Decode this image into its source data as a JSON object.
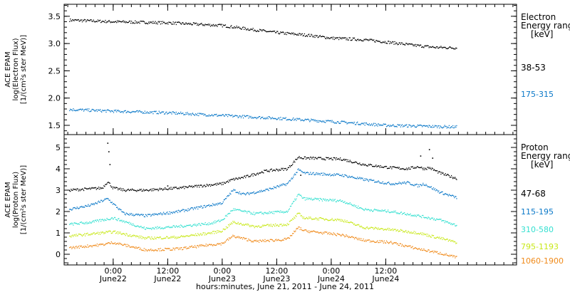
{
  "x_axis_title": "hours:minutes, June 21, 2011 - June 24, 2011",
  "chart_data": [
    {
      "id": "electron",
      "type": "scatter",
      "ylabel_lines": [
        "ACE EPAM",
        "log(Electron Flux)",
        "[1/(cm²s ster MeV)]"
      ],
      "legend_title_lines": [
        "Electron",
        "Energy range",
        "[keV]"
      ],
      "ylim": [
        1.33,
        3.72
      ],
      "yticks": [
        1.5,
        2.0,
        2.5,
        3.0,
        3.5
      ],
      "ytick_labels": [
        "1.5",
        "2.0",
        "2.5",
        "3.0",
        "3.5"
      ],
      "series": [
        {
          "name": "38-53",
          "color": "#000000",
          "x": [
            -0.4,
            0,
            0.5,
            1.0,
            1.3,
            1.5,
            1.8,
            2.0,
            2.3,
            2.5,
            2.75,
            2.95,
            3.15
          ],
          "y": [
            3.43,
            3.4,
            3.38,
            3.33,
            3.25,
            3.2,
            3.15,
            3.1,
            3.07,
            3.03,
            2.97,
            2.93,
            2.92
          ]
        },
        {
          "name": "175-315",
          "color": "#0a78c8",
          "x": [
            -0.4,
            0,
            0.5,
            1.0,
            1.5,
            2.0,
            2.5,
            3.15
          ],
          "y": [
            1.79,
            1.76,
            1.73,
            1.68,
            1.63,
            1.57,
            1.5,
            1.47
          ]
        }
      ]
    },
    {
      "id": "proton",
      "type": "scatter",
      "ylabel_lines": [
        "ACE EPAM",
        "log(Proton Flux)",
        "[1/(cm²s ster MeV)]"
      ],
      "legend_title_lines": [
        "Proton",
        "Energy range",
        "[keV]"
      ],
      "ylim": [
        -0.5,
        5.6
      ],
      "yticks": [
        0,
        1,
        2,
        3,
        4,
        5
      ],
      "ytick_labels": [
        "0",
        "1",
        "2",
        "3",
        "4",
        "5"
      ],
      "series": [
        {
          "name": "47-68",
          "color": "#000000",
          "x": [
            -0.4,
            -0.1,
            -0.05,
            0,
            0.1,
            0.3,
            0.6,
            1.0,
            1.1,
            1.2,
            1.4,
            1.6,
            1.7,
            1.75,
            1.8,
            2.1,
            2.3,
            2.55,
            2.7,
            2.8,
            2.85,
            2.9,
            3.0,
            3.15
          ],
          "y": [
            3.0,
            3.1,
            3.4,
            3.1,
            3.0,
            3.0,
            3.1,
            3.3,
            3.5,
            3.6,
            3.9,
            4.0,
            4.55,
            4.5,
            4.5,
            4.45,
            4.2,
            4.05,
            4.0,
            4.1,
            4.0,
            4.05,
            3.8,
            3.55
          ]
        },
        {
          "name": "115-195",
          "color": "#0a78c8",
          "x": [
            -0.4,
            -0.2,
            -0.05,
            0.1,
            0.3,
            0.6,
            0.8,
            1.0,
            1.1,
            1.2,
            1.4,
            1.6,
            1.7,
            1.75,
            2.1,
            2.3,
            2.55,
            2.7,
            2.8,
            2.85,
            3.0,
            3.15
          ],
          "y": [
            2.1,
            2.3,
            2.6,
            1.9,
            1.8,
            2.0,
            2.2,
            2.4,
            3.0,
            2.8,
            3.0,
            3.3,
            3.95,
            3.8,
            3.7,
            3.5,
            3.3,
            3.35,
            3.2,
            3.3,
            2.9,
            2.65
          ]
        },
        {
          "name": "310-580",
          "color": "#34e0d0",
          "x": [
            -0.4,
            -0.2,
            0,
            0.3,
            0.6,
            0.9,
            1.0,
            1.1,
            1.3,
            1.6,
            1.7,
            1.75,
            2.1,
            2.3,
            2.55,
            2.8,
            3.0,
            3.15
          ],
          "y": [
            1.4,
            1.5,
            1.7,
            1.2,
            1.3,
            1.45,
            1.6,
            2.1,
            1.9,
            2.0,
            2.8,
            2.6,
            2.5,
            2.1,
            2.0,
            1.8,
            1.6,
            1.35
          ]
        },
        {
          "name": "795-1193",
          "color": "#c8e818",
          "x": [
            -0.4,
            -0.1,
            0,
            0.3,
            0.6,
            0.9,
            1.0,
            1.1,
            1.3,
            1.6,
            1.7,
            1.75,
            2.1,
            2.3,
            2.55,
            2.8,
            3.0,
            3.15
          ],
          "y": [
            0.85,
            1.0,
            1.05,
            0.75,
            0.8,
            1.0,
            1.1,
            1.5,
            1.3,
            1.4,
            1.9,
            1.7,
            1.6,
            1.25,
            1.15,
            1.0,
            0.75,
            0.55
          ]
        },
        {
          "name": "1060-1900",
          "color": "#f08a1a",
          "x": [
            -0.4,
            -0.1,
            0,
            0.3,
            0.6,
            0.9,
            1.0,
            1.1,
            1.3,
            1.6,
            1.7,
            1.75,
            2.1,
            2.3,
            2.55,
            2.8,
            3.0,
            3.15
          ],
          "y": [
            0.3,
            0.45,
            0.55,
            0.2,
            0.25,
            0.45,
            0.5,
            0.85,
            0.6,
            0.7,
            1.25,
            1.1,
            0.9,
            0.65,
            0.55,
            0.25,
            0.05,
            -0.15
          ]
        }
      ]
    }
  ],
  "x_axis": {
    "range": [
      -0.45,
      3.7
    ],
    "ticks": [
      {
        "x": 0.0,
        "line1": "0:00",
        "line2": "June22"
      },
      {
        "x": 0.5,
        "line1": "12:00",
        "line2": "June22"
      },
      {
        "x": 1.0,
        "line1": "0:00",
        "line2": "June23"
      },
      {
        "x": 1.5,
        "line1": "12:00",
        "line2": "June23"
      },
      {
        "x": 2.0,
        "line1": "0:00",
        "line2": "June24"
      },
      {
        "x": 2.5,
        "line1": "12:00",
        "line2": "June24"
      }
    ]
  }
}
